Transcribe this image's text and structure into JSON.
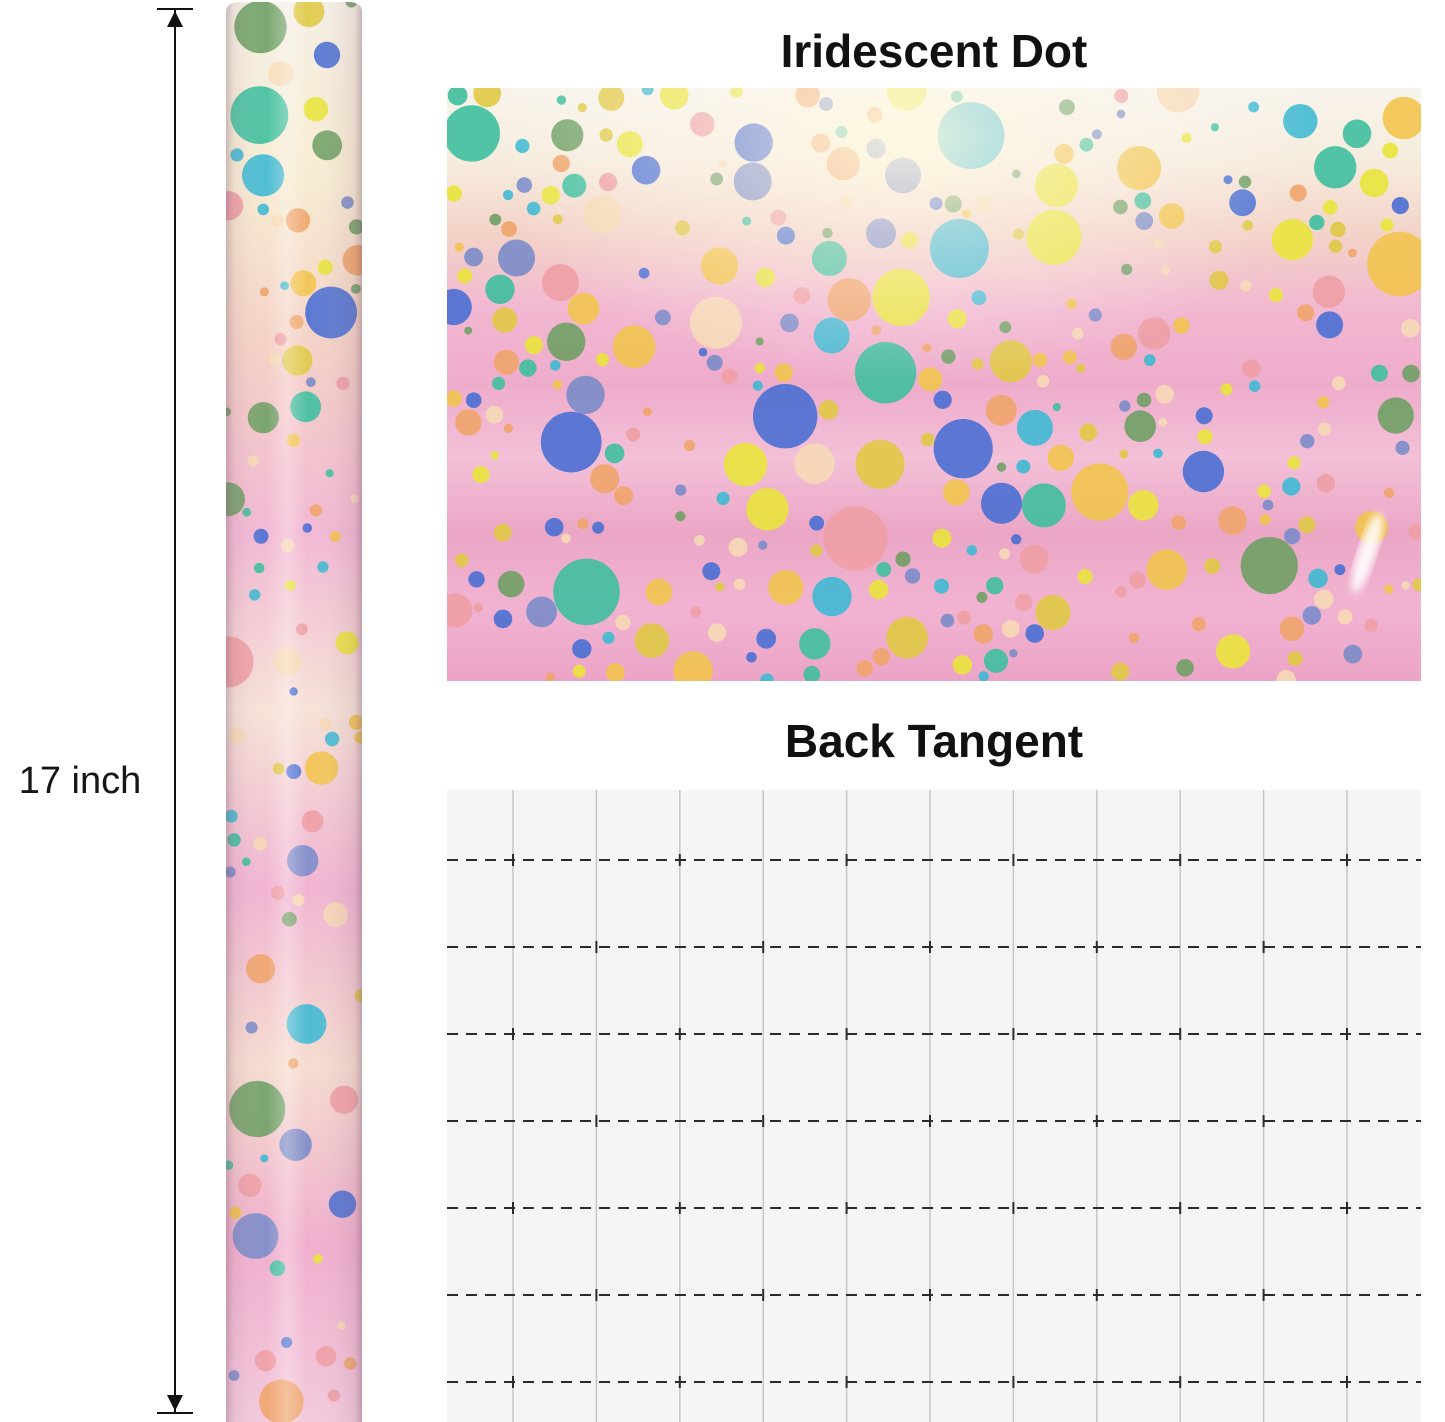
{
  "measurement": {
    "label": "17 inch"
  },
  "sections": {
    "front": {
      "title": "Iridescent Dot"
    },
    "back": {
      "title": "Back Tangent"
    }
  },
  "pattern": {
    "dot_colors": [
      "#e9e43c",
      "#f2c44e",
      "#f0a46a",
      "#ee9fa4",
      "#f6d9b6",
      "#3fb9d3",
      "#4a6fd3",
      "#7b8cc9",
      "#6fa065",
      "#3fbf9f",
      "#e0c945"
    ],
    "front_gradient": [
      "#f8f4ec",
      "#f6ecdc",
      "#f3d2c8",
      "#f2b7d1",
      "#eeaccb",
      "#f3c0d7",
      "#eba6c6",
      "#f1b3d1",
      "#eca4c6"
    ],
    "roll_gradient": [
      "#f6efe4",
      "#f7ecd2",
      "#f4d0c6",
      "#f2b8d4",
      "#f6e2d6",
      "#f1b4d2",
      "#f5dccf",
      "#f0aecd",
      "#f3c9dc"
    ]
  },
  "grid": {
    "background": "#f5f5f5",
    "vertical_line_color": "#c4c4c4",
    "horizontal_line_color": "#2b2b2b"
  }
}
